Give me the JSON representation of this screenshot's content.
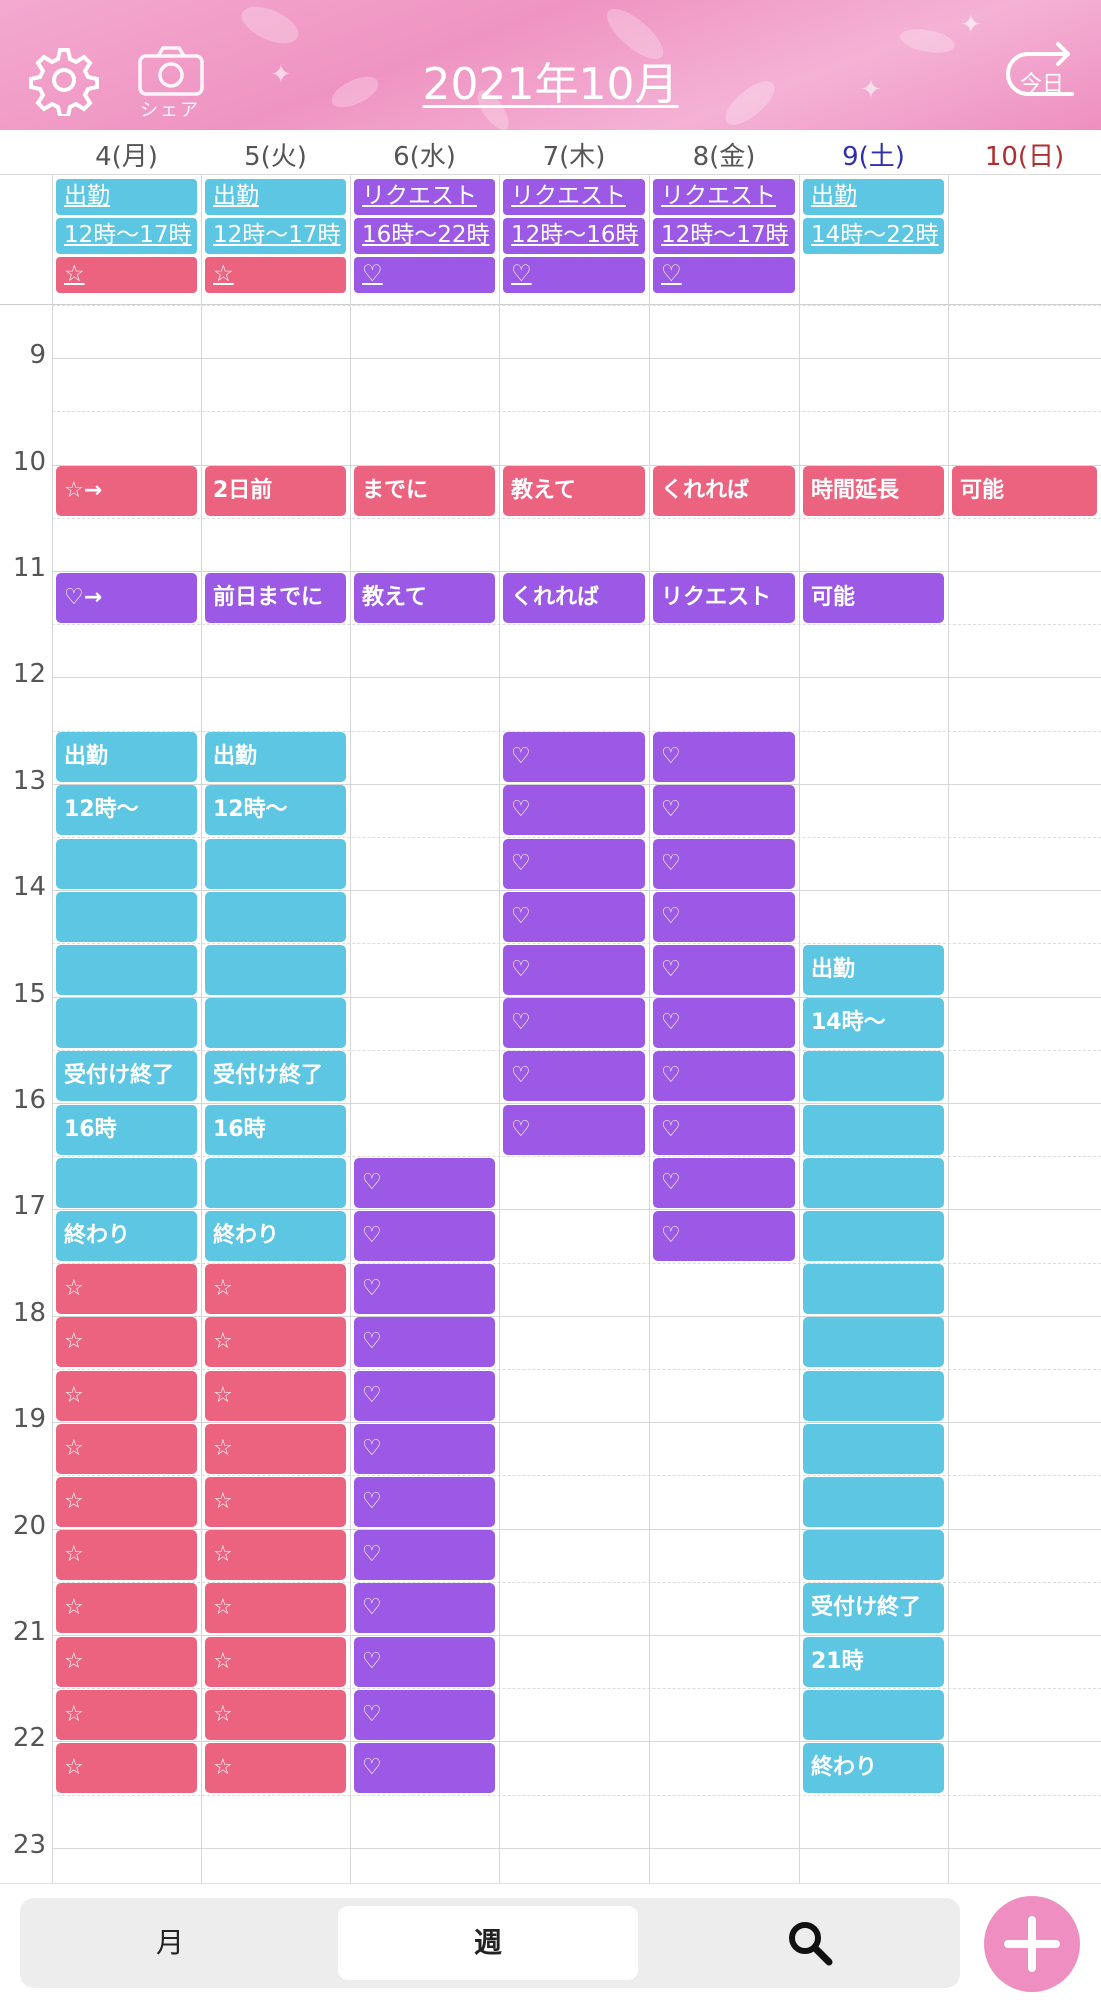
{
  "header": {
    "title": "2021年10月",
    "share_label": "シェア",
    "today_label": "今日"
  },
  "days": [
    {
      "label": "4(月)",
      "color": "#555555"
    },
    {
      "label": "5(火)",
      "color": "#555555"
    },
    {
      "label": "6(水)",
      "color": "#555555"
    },
    {
      "label": "7(木)",
      "color": "#555555"
    },
    {
      "label": "8(金)",
      "color": "#555555"
    },
    {
      "label": "9(土)",
      "color": "#2f2fb0"
    },
    {
      "label": "10(日)",
      "color": "#b02f2f"
    }
  ],
  "colors": {
    "blue": "#5cc6e3",
    "purple": "#9b59e6",
    "pink": "#ec6380"
  },
  "hours": [
    "9",
    "10",
    "11",
    "12",
    "13",
    "14",
    "15",
    "16",
    "17",
    "18",
    "19",
    "20",
    "21",
    "22",
    "23"
  ],
  "allday_events": [
    {
      "day": 0,
      "row": 0,
      "color": "blue",
      "text": "出勤"
    },
    {
      "day": 0,
      "row": 1,
      "color": "blue",
      "text": "12時〜17時"
    },
    {
      "day": 0,
      "row": 2,
      "color": "pink",
      "text": "☆"
    },
    {
      "day": 1,
      "row": 0,
      "color": "blue",
      "text": "出勤"
    },
    {
      "day": 1,
      "row": 1,
      "color": "blue",
      "text": "12時〜17時"
    },
    {
      "day": 1,
      "row": 2,
      "color": "pink",
      "text": "☆"
    },
    {
      "day": 2,
      "row": 0,
      "color": "purple",
      "text": "リクエスト"
    },
    {
      "day": 2,
      "row": 1,
      "color": "purple",
      "text": "16時〜22時"
    },
    {
      "day": 2,
      "row": 2,
      "color": "purple",
      "text": "♡"
    },
    {
      "day": 3,
      "row": 0,
      "color": "purple",
      "text": "リクエスト"
    },
    {
      "day": 3,
      "row": 1,
      "color": "purple",
      "text": "12時〜16時"
    },
    {
      "day": 3,
      "row": 2,
      "color": "purple",
      "text": "♡"
    },
    {
      "day": 4,
      "row": 0,
      "color": "purple",
      "text": "リクエスト"
    },
    {
      "day": 4,
      "row": 1,
      "color": "purple",
      "text": "12時〜17時"
    },
    {
      "day": 4,
      "row": 2,
      "color": "purple",
      "text": "♡"
    },
    {
      "day": 5,
      "row": 0,
      "color": "blue",
      "text": "出勤"
    },
    {
      "day": 5,
      "row": 1,
      "color": "blue",
      "text": "14時〜22時"
    }
  ],
  "timed_events": [
    {
      "day": 0,
      "slot": 3,
      "color": "pink",
      "text": "☆→"
    },
    {
      "day": 1,
      "slot": 3,
      "color": "pink",
      "text": "2日前"
    },
    {
      "day": 2,
      "slot": 3,
      "color": "pink",
      "text": "までに"
    },
    {
      "day": 3,
      "slot": 3,
      "color": "pink",
      "text": "教えて"
    },
    {
      "day": 4,
      "slot": 3,
      "color": "pink",
      "text": "くれれば"
    },
    {
      "day": 5,
      "slot": 3,
      "color": "pink",
      "text": "時間延長"
    },
    {
      "day": 6,
      "slot": 3,
      "color": "pink",
      "text": "可能"
    },
    {
      "day": 0,
      "slot": 5,
      "color": "purple",
      "text": "♡→"
    },
    {
      "day": 1,
      "slot": 5,
      "color": "purple",
      "text": "前日までに"
    },
    {
      "day": 2,
      "slot": 5,
      "color": "purple",
      "text": "教えて"
    },
    {
      "day": 3,
      "slot": 5,
      "color": "purple",
      "text": "くれれば"
    },
    {
      "day": 4,
      "slot": 5,
      "color": "purple",
      "text": "リクエスト"
    },
    {
      "day": 5,
      "slot": 5,
      "color": "purple",
      "text": "可能"
    },
    {
      "day": 0,
      "slot": 8,
      "color": "blue",
      "text": "出勤"
    },
    {
      "day": 0,
      "slot": 9,
      "color": "blue",
      "text": "12時〜"
    },
    {
      "day": 0,
      "slot": 10,
      "color": "blue",
      "text": ""
    },
    {
      "day": 0,
      "slot": 11,
      "color": "blue",
      "text": ""
    },
    {
      "day": 0,
      "slot": 12,
      "color": "blue",
      "text": ""
    },
    {
      "day": 0,
      "slot": 13,
      "color": "blue",
      "text": ""
    },
    {
      "day": 0,
      "slot": 14,
      "color": "blue",
      "text": "受付け終了"
    },
    {
      "day": 0,
      "slot": 15,
      "color": "blue",
      "text": "16時"
    },
    {
      "day": 0,
      "slot": 16,
      "color": "blue",
      "text": ""
    },
    {
      "day": 0,
      "slot": 17,
      "color": "blue",
      "text": "終わり"
    },
    {
      "day": 0,
      "slot": 18,
      "color": "pink",
      "text": "☆"
    },
    {
      "day": 0,
      "slot": 19,
      "color": "pink",
      "text": "☆"
    },
    {
      "day": 0,
      "slot": 20,
      "color": "pink",
      "text": "☆"
    },
    {
      "day": 0,
      "slot": 21,
      "color": "pink",
      "text": "☆"
    },
    {
      "day": 0,
      "slot": 22,
      "color": "pink",
      "text": "☆"
    },
    {
      "day": 0,
      "slot": 23,
      "color": "pink",
      "text": "☆"
    },
    {
      "day": 0,
      "slot": 24,
      "color": "pink",
      "text": "☆"
    },
    {
      "day": 0,
      "slot": 25,
      "color": "pink",
      "text": "☆"
    },
    {
      "day": 0,
      "slot": 26,
      "color": "pink",
      "text": "☆"
    },
    {
      "day": 0,
      "slot": 27,
      "color": "pink",
      "text": "☆"
    },
    {
      "day": 1,
      "slot": 8,
      "color": "blue",
      "text": "出勤"
    },
    {
      "day": 1,
      "slot": 9,
      "color": "blue",
      "text": "12時〜"
    },
    {
      "day": 1,
      "slot": 10,
      "color": "blue",
      "text": ""
    },
    {
      "day": 1,
      "slot": 11,
      "color": "blue",
      "text": ""
    },
    {
      "day": 1,
      "slot": 12,
      "color": "blue",
      "text": ""
    },
    {
      "day": 1,
      "slot": 13,
      "color": "blue",
      "text": ""
    },
    {
      "day": 1,
      "slot": 14,
      "color": "blue",
      "text": "受付け終了"
    },
    {
      "day": 1,
      "slot": 15,
      "color": "blue",
      "text": "16時"
    },
    {
      "day": 1,
      "slot": 16,
      "color": "blue",
      "text": ""
    },
    {
      "day": 1,
      "slot": 17,
      "color": "blue",
      "text": "終わり"
    },
    {
      "day": 1,
      "slot": 18,
      "color": "pink",
      "text": "☆"
    },
    {
      "day": 1,
      "slot": 19,
      "color": "pink",
      "text": "☆"
    },
    {
      "day": 1,
      "slot": 20,
      "color": "pink",
      "text": "☆"
    },
    {
      "day": 1,
      "slot": 21,
      "color": "pink",
      "text": "☆"
    },
    {
      "day": 1,
      "slot": 22,
      "color": "pink",
      "text": "☆"
    },
    {
      "day": 1,
      "slot": 23,
      "color": "pink",
      "text": "☆"
    },
    {
      "day": 1,
      "slot": 24,
      "color": "pink",
      "text": "☆"
    },
    {
      "day": 1,
      "slot": 25,
      "color": "pink",
      "text": "☆"
    },
    {
      "day": 1,
      "slot": 26,
      "color": "pink",
      "text": "☆"
    },
    {
      "day": 1,
      "slot": 27,
      "color": "pink",
      "text": "☆"
    },
    {
      "day": 2,
      "slot": 16,
      "color": "purple",
      "text": "♡"
    },
    {
      "day": 2,
      "slot": 17,
      "color": "purple",
      "text": "♡"
    },
    {
      "day": 2,
      "slot": 18,
      "color": "purple",
      "text": "♡"
    },
    {
      "day": 2,
      "slot": 19,
      "color": "purple",
      "text": "♡"
    },
    {
      "day": 2,
      "slot": 20,
      "color": "purple",
      "text": "♡"
    },
    {
      "day": 2,
      "slot": 21,
      "color": "purple",
      "text": "♡"
    },
    {
      "day": 2,
      "slot": 22,
      "color": "purple",
      "text": "♡"
    },
    {
      "day": 2,
      "slot": 23,
      "color": "purple",
      "text": "♡"
    },
    {
      "day": 2,
      "slot": 24,
      "color": "purple",
      "text": "♡"
    },
    {
      "day": 2,
      "slot": 25,
      "color": "purple",
      "text": "♡"
    },
    {
      "day": 2,
      "slot": 26,
      "color": "purple",
      "text": "♡"
    },
    {
      "day": 2,
      "slot": 27,
      "color": "purple",
      "text": "♡"
    },
    {
      "day": 3,
      "slot": 8,
      "color": "purple",
      "text": "♡"
    },
    {
      "day": 3,
      "slot": 9,
      "color": "purple",
      "text": "♡"
    },
    {
      "day": 3,
      "slot": 10,
      "color": "purple",
      "text": "♡"
    },
    {
      "day": 3,
      "slot": 11,
      "color": "purple",
      "text": "♡"
    },
    {
      "day": 3,
      "slot": 12,
      "color": "purple",
      "text": "♡"
    },
    {
      "day": 3,
      "slot": 13,
      "color": "purple",
      "text": "♡"
    },
    {
      "day": 3,
      "slot": 14,
      "color": "purple",
      "text": "♡"
    },
    {
      "day": 3,
      "slot": 15,
      "color": "purple",
      "text": "♡"
    },
    {
      "day": 4,
      "slot": 8,
      "color": "purple",
      "text": "♡"
    },
    {
      "day": 4,
      "slot": 9,
      "color": "purple",
      "text": "♡"
    },
    {
      "day": 4,
      "slot": 10,
      "color": "purple",
      "text": "♡"
    },
    {
      "day": 4,
      "slot": 11,
      "color": "purple",
      "text": "♡"
    },
    {
      "day": 4,
      "slot": 12,
      "color": "purple",
      "text": "♡"
    },
    {
      "day": 4,
      "slot": 13,
      "color": "purple",
      "text": "♡"
    },
    {
      "day": 4,
      "slot": 14,
      "color": "purple",
      "text": "♡"
    },
    {
      "day": 4,
      "slot": 15,
      "color": "purple",
      "text": "♡"
    },
    {
      "day": 4,
      "slot": 16,
      "color": "purple",
      "text": "♡"
    },
    {
      "day": 4,
      "slot": 17,
      "color": "purple",
      "text": "♡"
    },
    {
      "day": 5,
      "slot": 12,
      "color": "blue",
      "text": "出勤"
    },
    {
      "day": 5,
      "slot": 13,
      "color": "blue",
      "text": "14時〜"
    },
    {
      "day": 5,
      "slot": 14,
      "color": "blue",
      "text": ""
    },
    {
      "day": 5,
      "slot": 15,
      "color": "blue",
      "text": ""
    },
    {
      "day": 5,
      "slot": 16,
      "color": "blue",
      "text": ""
    },
    {
      "day": 5,
      "slot": 17,
      "color": "blue",
      "text": ""
    },
    {
      "day": 5,
      "slot": 18,
      "color": "blue",
      "text": ""
    },
    {
      "day": 5,
      "slot": 19,
      "color": "blue",
      "text": ""
    },
    {
      "day": 5,
      "slot": 20,
      "color": "blue",
      "text": ""
    },
    {
      "day": 5,
      "slot": 21,
      "color": "blue",
      "text": ""
    },
    {
      "day": 5,
      "slot": 22,
      "color": "blue",
      "text": ""
    },
    {
      "day": 5,
      "slot": 23,
      "color": "blue",
      "text": ""
    },
    {
      "day": 5,
      "slot": 24,
      "color": "blue",
      "text": "受付け終了"
    },
    {
      "day": 5,
      "slot": 25,
      "color": "blue",
      "text": "21時"
    },
    {
      "day": 5,
      "slot": 26,
      "color": "blue",
      "text": ""
    },
    {
      "day": 5,
      "slot": 27,
      "color": "blue",
      "text": "終わり"
    }
  ],
  "tabs": [
    {
      "label": "月",
      "active": false
    },
    {
      "label": "週",
      "active": true
    },
    {
      "icon": "search-icon",
      "active": false
    }
  ],
  "add_button": {
    "icon": "plus-icon"
  }
}
